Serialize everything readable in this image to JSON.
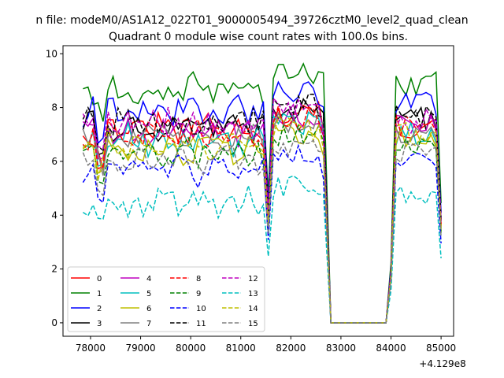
{
  "chart_data": {
    "type": "line",
    "suptitle": "n file: modeM0/AS1A12_022T01_9000005494_39726cztM0_level2_quad_clean",
    "title": "Quadrant 0 module wise count rates with 100.0s bins.",
    "xlabel": "",
    "ylabel": "",
    "x_offset_label": "+4.129e8",
    "xlim": [
      77450,
      85250
    ],
    "ylim": [
      -0.5,
      10.3
    ],
    "x_ticks": [
      "78000",
      "79000",
      "80000",
      "81000",
      "82000",
      "83000",
      "84000",
      "85000"
    ],
    "y_ticks": [
      "0",
      "2",
      "4",
      "6",
      "8",
      "10"
    ],
    "grid": false,
    "legend": {
      "placement": "lower-left",
      "columns": 4
    },
    "segments": [
      {
        "x_start": 77850,
        "x_end": 82700,
        "step": 100
      },
      {
        "x_start": 82800,
        "x_end": 83900,
        "step": 100
      },
      {
        "x_start": 84000,
        "x_end": 85000,
        "step": 100
      }
    ],
    "series": [
      {
        "name": "0",
        "color": "#ff0000",
        "dash": "solid",
        "level": 7.2,
        "seg3_level": 7.2
      },
      {
        "name": "1",
        "color": "#008000",
        "dash": "solid",
        "level": 8.7,
        "seg3_level": 8.9
      },
      {
        "name": "2",
        "color": "#0000ff",
        "dash": "solid",
        "level": 7.9,
        "seg3_level": 8.2
      },
      {
        "name": "3",
        "color": "#000000",
        "dash": "solid",
        "level": 7.3,
        "seg3_level": 7.6
      },
      {
        "name": "4",
        "color": "#bf00bf",
        "dash": "solid",
        "level": 7.1,
        "seg3_level": 7.5
      },
      {
        "name": "5",
        "color": "#00bfbf",
        "dash": "solid",
        "level": 6.8,
        "seg3_level": 7.0
      },
      {
        "name": "6",
        "color": "#bfbf00",
        "dash": "solid",
        "level": 6.4,
        "seg3_level": 6.8
      },
      {
        "name": "7",
        "color": "#808080",
        "dash": "solid",
        "level": 6.9,
        "seg3_level": 7.1
      },
      {
        "name": "8",
        "color": "#ff0000",
        "dash": "dashed",
        "level": 7.0,
        "seg3_level": 7.3
      },
      {
        "name": "9",
        "color": "#008000",
        "dash": "dashed",
        "level": 6.3,
        "seg3_level": 6.6
      },
      {
        "name": "10",
        "color": "#0000ff",
        "dash": "dashed",
        "level": 5.6,
        "seg3_level": 5.9
      },
      {
        "name": "11",
        "color": "#000000",
        "dash": "dashed",
        "level": 7.5,
        "seg3_level": 7.7
      },
      {
        "name": "12",
        "color": "#bf00bf",
        "dash": "dashed",
        "level": 7.4,
        "seg3_level": 7.5
      },
      {
        "name": "13",
        "color": "#00bfbf",
        "dash": "dashed",
        "level": 4.5,
        "seg3_level": 4.8
      },
      {
        "name": "14",
        "color": "#bfbf00",
        "dash": "dashed",
        "level": 6.6,
        "seg3_level": 7.0
      },
      {
        "name": "15",
        "color": "#808080",
        "dash": "dashed",
        "level": 6.0,
        "seg3_level": 6.4
      }
    ]
  }
}
